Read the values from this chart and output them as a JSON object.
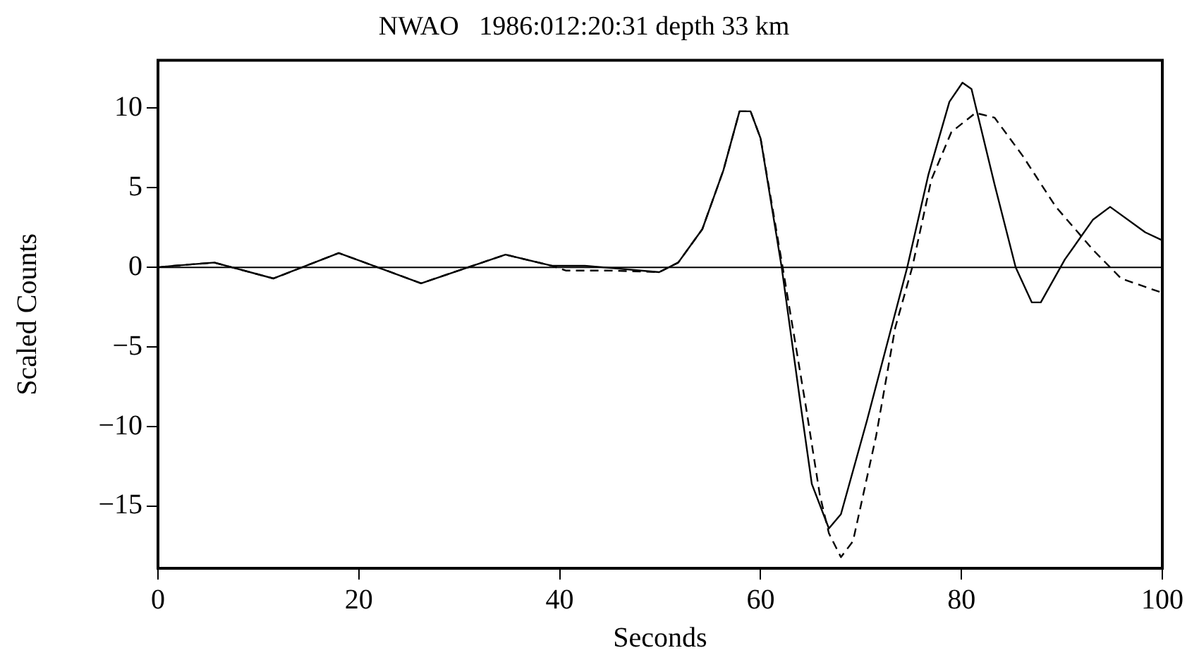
{
  "chart_data": {
    "type": "line",
    "title": "NWAO   1986:012:20:31 depth 33 km",
    "xlabel": "Seconds",
    "ylabel": "Scaled Counts",
    "xlim": [
      0,
      100
    ],
    "xticks": [
      0,
      20,
      40,
      60,
      80,
      100
    ],
    "ylim": [
      -18.9,
      13
    ],
    "yticks": [
      -15,
      -10,
      -5,
      0,
      5,
      10
    ],
    "grid": false,
    "legend": false,
    "marker": "none",
    "ref_lines": [
      {
        "axis": "y",
        "value": 0,
        "color": "#000000"
      }
    ],
    "series": [
      {
        "color": "#000000",
        "line_style": "solid",
        "x": [
          0,
          1.6,
          5.6,
          11.5,
          18.0,
          26.2,
          34.6,
          39.2,
          42.5,
          49.9,
          51.8,
          54.2,
          56.3,
          57.9,
          59.0,
          60.0,
          62.1,
          64.0,
          65.1,
          66.8,
          68.0,
          70.6,
          74.6,
          76.7,
          78.8,
          80.1,
          81.0,
          83.3,
          85.4,
          87.0,
          87.9,
          90.3,
          93.1,
          94.8,
          98.3,
          100
        ],
        "values": [
          0,
          0.1,
          0.3,
          -0.7,
          0.9,
          -1.0,
          0.8,
          0.1,
          0.1,
          -0.3,
          0.3,
          2.4,
          6.1,
          9.8,
          9.8,
          8.1,
          0,
          -8.7,
          -13.6,
          -16.4,
          -15.5,
          -9.6,
          0,
          5.8,
          10.4,
          11.6,
          11.2,
          5.2,
          0,
          -2.2,
          -2.2,
          0.5,
          3.0,
          3.8,
          2.2,
          1.7
        ]
      },
      {
        "color": "#000000",
        "line_style": "dashed",
        "x": [
          0,
          1.6,
          5.6,
          11.5,
          18.0,
          26.2,
          34.6,
          39.2,
          40.6,
          44.8,
          49.9,
          51.8,
          54.2,
          56.3,
          57.9,
          59.0,
          60.0,
          62.2,
          64.5,
          65.9,
          66.8,
          68.0,
          69.2,
          71.5,
          73.4,
          75.1,
          77.0,
          79.0,
          81.4,
          83.3,
          86.1,
          89.4,
          93.1,
          95.9,
          100
        ],
        "values": [
          0,
          0.1,
          0.3,
          -0.7,
          0.9,
          -1.0,
          0.8,
          0.1,
          -0.2,
          -0.2,
          -0.3,
          0.3,
          2.4,
          6.1,
          9.8,
          9.8,
          8.1,
          0,
          -8.7,
          -14.3,
          -16.7,
          -18.2,
          -17.2,
          -10.6,
          -3.8,
          0,
          5.5,
          8.5,
          9.7,
          9.4,
          7.0,
          3.8,
          1.1,
          -0.7,
          -1.6
        ]
      }
    ]
  }
}
